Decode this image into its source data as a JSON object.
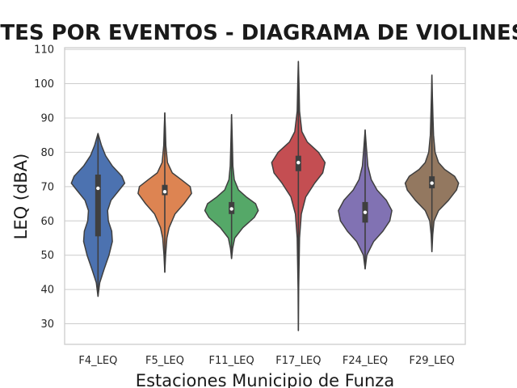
{
  "chart_data": {
    "type": "violin",
    "title": "NTES POR EVENTOS - DIAGRAMA DE VIOLINES",
    "xlabel": "Estaciones Municipio de Funza",
    "ylabel": "LEQ (dBA)",
    "ylim": [
      24,
      110.5
    ],
    "yticks": [
      30,
      40,
      50,
      60,
      70,
      80,
      90,
      100,
      110
    ],
    "grid": true,
    "categories": [
      "F4_LEQ",
      "F5_LEQ",
      "F11_LEQ",
      "F17_LEQ",
      "F24_LEQ",
      "F29_LEQ"
    ],
    "series": [
      {
        "category": "F4_LEQ",
        "color": "#4c72b0",
        "min": 38,
        "max": 85.5,
        "q1": 55.5,
        "median": 69.5,
        "q3": 73.5,
        "density": [
          [
            38,
            0
          ],
          [
            42,
            0.05
          ],
          [
            46,
            0.18
          ],
          [
            50,
            0.32
          ],
          [
            54,
            0.42
          ],
          [
            57,
            0.4
          ],
          [
            60,
            0.3
          ],
          [
            63,
            0.28
          ],
          [
            66,
            0.38
          ],
          [
            69,
            0.62
          ],
          [
            71,
            0.78
          ],
          [
            73,
            0.7
          ],
          [
            76,
            0.42
          ],
          [
            79,
            0.22
          ],
          [
            82,
            0.1
          ],
          [
            85.5,
            0
          ]
        ]
      },
      {
        "category": "F5_LEQ",
        "color": "#dd8452",
        "min": 45,
        "max": 91.5,
        "q1": 67.5,
        "median": 68.5,
        "q3": 70.5,
        "density": [
          [
            45,
            0
          ],
          [
            50,
            0.03
          ],
          [
            55,
            0.08
          ],
          [
            58,
            0.16
          ],
          [
            62,
            0.38
          ],
          [
            65,
            0.72
          ],
          [
            68,
            1.0
          ],
          [
            70,
            0.95
          ],
          [
            72,
            0.62
          ],
          [
            74,
            0.28
          ],
          [
            77,
            0.1
          ],
          [
            82,
            0.04
          ],
          [
            87,
            0.02
          ],
          [
            91.5,
            0
          ]
        ]
      },
      {
        "category": "F11_LEQ",
        "color": "#55a868",
        "min": 49,
        "max": 91,
        "q1": 62,
        "median": 63.5,
        "q3": 65.5,
        "density": [
          [
            49,
            0
          ],
          [
            52,
            0.04
          ],
          [
            55,
            0.12
          ],
          [
            58,
            0.42
          ],
          [
            61,
            0.85
          ],
          [
            63,
            1.0
          ],
          [
            65,
            0.9
          ],
          [
            67,
            0.55
          ],
          [
            69,
            0.26
          ],
          [
            72,
            0.1
          ],
          [
            76,
            0.05
          ],
          [
            82,
            0.03
          ],
          [
            91,
            0
          ]
        ]
      },
      {
        "category": "F17_LEQ",
        "color": "#c44e52",
        "min": 28,
        "max": 106.5,
        "q1": 74.5,
        "median": 77,
        "q3": 79,
        "density": [
          [
            28,
            0
          ],
          [
            40,
            0.01
          ],
          [
            55,
            0.04
          ],
          [
            62,
            0.1
          ],
          [
            67,
            0.25
          ],
          [
            71,
            0.55
          ],
          [
            74,
            0.82
          ],
          [
            77,
            0.9
          ],
          [
            80,
            0.68
          ],
          [
            83,
            0.3
          ],
          [
            86,
            0.12
          ],
          [
            92,
            0.04
          ],
          [
            100,
            0.02
          ],
          [
            106.5,
            0
          ]
        ]
      },
      {
        "category": "F24_LEQ",
        "color": "#8172b3",
        "min": 46,
        "max": 86.5,
        "q1": 59.5,
        "median": 62.5,
        "q3": 65.5,
        "density": [
          [
            46,
            0
          ],
          [
            50,
            0.05
          ],
          [
            54,
            0.25
          ],
          [
            57,
            0.52
          ],
          [
            60,
            0.72
          ],
          [
            63,
            0.78
          ],
          [
            66,
            0.62
          ],
          [
            69,
            0.35
          ],
          [
            72,
            0.18
          ],
          [
            76,
            0.08
          ],
          [
            81,
            0.04
          ],
          [
            86.5,
            0
          ]
        ]
      },
      {
        "category": "F29_LEQ",
        "color": "#937860",
        "min": 51,
        "max": 102.5,
        "q1": 69.5,
        "median": 71,
        "q3": 73,
        "density": [
          [
            51,
            0
          ],
          [
            56,
            0.03
          ],
          [
            60,
            0.08
          ],
          [
            63,
            0.25
          ],
          [
            66,
            0.62
          ],
          [
            69,
            0.92
          ],
          [
            71,
            1.0
          ],
          [
            73,
            0.85
          ],
          [
            75,
            0.48
          ],
          [
            77,
            0.25
          ],
          [
            80,
            0.12
          ],
          [
            85,
            0.06
          ],
          [
            90,
            0.04
          ],
          [
            96,
            0.02
          ],
          [
            102.5,
            0
          ]
        ]
      }
    ]
  }
}
